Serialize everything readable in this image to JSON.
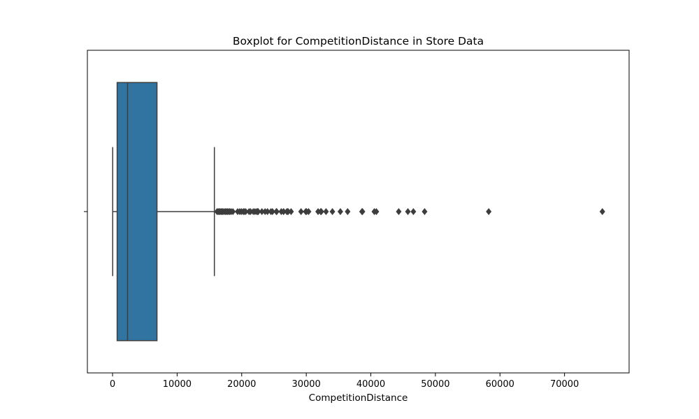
{
  "chart_data": {
    "type": "boxplot",
    "orientation": "horizontal",
    "title": "Boxplot for CompetitionDistance in Store Data",
    "xlabel": "CompetitionDistance",
    "ylabel": "",
    "xlim": [
      -3900,
      80000
    ],
    "xticks": [
      0,
      10000,
      20000,
      30000,
      40000,
      50000,
      60000,
      70000
    ],
    "xtick_labels": [
      "0",
      "10000",
      "20000",
      "30000",
      "40000",
      "50000",
      "60000",
      "70000"
    ],
    "grid": false,
    "colors": {
      "box_fill": "#3274a1",
      "lines": "#3d3d3d",
      "outliers": "#3d3d3d"
    },
    "box": {
      "whisker_low": 20,
      "q1": 710,
      "median": 2325,
      "q3": 6880,
      "whisker_high": 15770
    },
    "outliers": [
      16180,
      16350,
      16490,
      16650,
      16800,
      16970,
      17080,
      17300,
      17500,
      17650,
      17800,
      18010,
      18160,
      18370,
      18640,
      19370,
      19700,
      19960,
      20260,
      20390,
      20620,
      21140,
      21370,
      21790,
      22050,
      22330,
      22440,
      22560,
      23130,
      23620,
      24000,
      24530,
      24770,
      25360,
      25430,
      26130,
      26490,
      26490,
      26990,
      27150,
      27190,
      27650,
      29190,
      29910,
      30030,
      30360,
      31830,
      32240,
      32330,
      33060,
      34050,
      35280,
      36410,
      38630,
      38710,
      40540,
      40860,
      44320,
      45740,
      46590,
      48330,
      58260,
      75860
    ]
  }
}
